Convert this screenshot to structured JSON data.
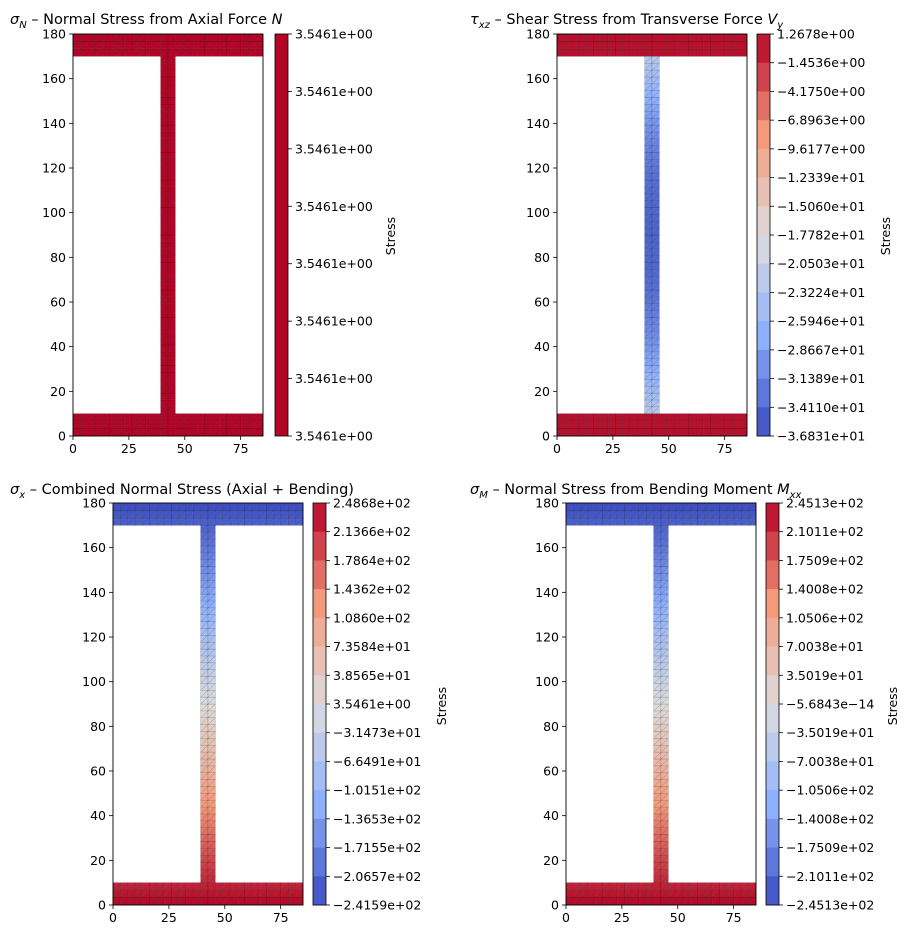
{
  "chart_data": [
    {
      "id": "sigmaN",
      "type": "heatmap",
      "title": {
        "sym": "σ",
        "sub": "N",
        "text": " – Normal Stress from Axial Force ",
        "tail": "N",
        "tailSub": ""
      },
      "xlabel": "",
      "ylabel": "",
      "xlim": [
        0,
        85
      ],
      "ylim": [
        0,
        180
      ],
      "xticks": [
        0,
        25,
        50,
        75
      ],
      "yticks": [
        0,
        20,
        40,
        60,
        80,
        100,
        120,
        140,
        160,
        180
      ],
      "colorbar": {
        "label": "Stress",
        "kind": "single",
        "min_label": "3.5461e+00",
        "max_label": "3.5461e+00",
        "levels": [
          "3.5461e+00",
          "3.5461e+00",
          "3.5461e+00",
          "3.5461e+00",
          "3.5461e+00",
          "3.5461e+00",
          "3.5461e+00",
          "3.5461e+00"
        ],
        "color": "#b40426"
      },
      "section": {
        "flange_width": 85,
        "depth": 180,
        "flange_thickness": 10,
        "web_x": [
          39.2,
          45.8
        ]
      },
      "field": "uniform",
      "value": 3.5461
    },
    {
      "id": "tauxz",
      "type": "heatmap",
      "title": {
        "sym": "τ",
        "sub": "xz",
        "text": " – Shear Stress from Transverse Force ",
        "tail": "V",
        "tailSub": "y"
      },
      "xlabel": "",
      "ylabel": "",
      "xlim": [
        0,
        85
      ],
      "ylim": [
        0,
        180
      ],
      "xticks": [
        0,
        25,
        50,
        75
      ],
      "yticks": [
        0,
        20,
        40,
        60,
        80,
        100,
        120,
        140,
        160,
        180
      ],
      "colorbar": {
        "label": "Stress",
        "kind": "diverging",
        "levels": [
          "1.2678e+00",
          "−1.4536e+00",
          "−4.1750e+00",
          "−6.8963e+00",
          "−9.6177e+00",
          "−1.2339e+01",
          "−1.5060e+01",
          "−1.7782e+01",
          "−2.0503e+01",
          "−2.3224e+01",
          "−2.5946e+01",
          "−2.8667e+01",
          "−3.1389e+01",
          "−3.4110e+01",
          "−3.6831e+01"
        ],
        "min": -36.831,
        "max": 1.2678
      },
      "section": {
        "flange_width": 85,
        "depth": 180,
        "flange_thickness": 10,
        "web_x": [
          39.2,
          45.8
        ]
      },
      "field": "shear",
      "flange_value": 0.6,
      "web_edge_value": -22.0,
      "web_center_value": -34.5
    },
    {
      "id": "sigmax",
      "type": "heatmap",
      "title": {
        "sym": "σ",
        "sub": "x",
        "text": " – Combined Normal Stress (Axial + Bending)",
        "tail": "",
        "tailSub": ""
      },
      "xlabel": "",
      "ylabel": "",
      "xlim": [
        0,
        85
      ],
      "ylim": [
        0,
        180
      ],
      "xticks": [
        0,
        25,
        50,
        75
      ],
      "yticks": [
        0,
        20,
        40,
        60,
        80,
        100,
        120,
        140,
        160,
        180
      ],
      "colorbar": {
        "label": "Stress",
        "kind": "diverging",
        "levels": [
          "2.4868e+02",
          "2.1366e+02",
          "1.7864e+02",
          "1.4362e+02",
          "1.0860e+02",
          "7.3584e+01",
          "3.8565e+01",
          "3.5461e+00",
          "−3.1473e+01",
          "−6.6491e+01",
          "−1.0151e+02",
          "−1.3653e+02",
          "−1.7155e+02",
          "−2.0657e+02",
          "−2.4159e+02"
        ],
        "min": -241.59,
        "max": 248.68
      },
      "section": {
        "flange_width": 85,
        "depth": 180,
        "flange_thickness": 10,
        "web_x": [
          39.2,
          45.8
        ]
      },
      "field": "linear",
      "bottom_value": 248.68,
      "top_value": -241.59
    },
    {
      "id": "sigmaM",
      "type": "heatmap",
      "title": {
        "sym": "σ",
        "sub": "M",
        "text": " – Normal Stress from Bending Moment ",
        "tail": "M",
        "tailSub": "xx"
      },
      "xlabel": "",
      "ylabel": "",
      "xlim": [
        0,
        85
      ],
      "ylim": [
        0,
        180
      ],
      "xticks": [
        0,
        25,
        50,
        75
      ],
      "yticks": [
        0,
        20,
        40,
        60,
        80,
        100,
        120,
        140,
        160,
        180
      ],
      "colorbar": {
        "label": "Stress",
        "kind": "diverging",
        "levels": [
          "2.4513e+02",
          "2.1011e+02",
          "1.7509e+02",
          "1.4008e+02",
          "1.0506e+02",
          "7.0038e+01",
          "3.5019e+01",
          "−5.6843e−14",
          "−3.5019e+01",
          "−7.0038e+01",
          "−1.0506e+02",
          "−1.4008e+02",
          "−1.7509e+02",
          "−2.1011e+02",
          "−2.4513e+02"
        ],
        "min": -245.13,
        "max": 245.13
      },
      "section": {
        "flange_width": 85,
        "depth": 180,
        "flange_thickness": 10,
        "web_x": [
          39.2,
          45.8
        ]
      },
      "field": "linear",
      "bottom_value": 245.13,
      "top_value": -245.13
    }
  ]
}
